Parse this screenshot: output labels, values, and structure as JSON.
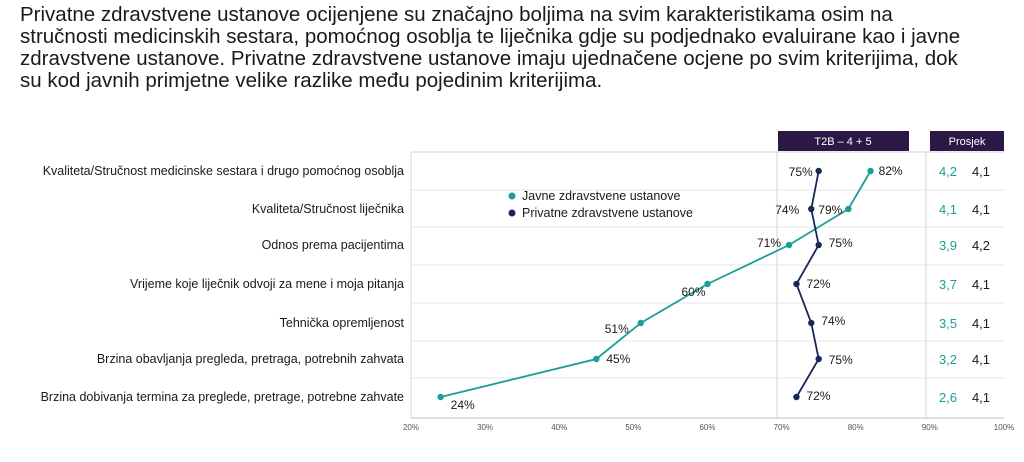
{
  "headline": {
    "lines": [
      "Privatne zdravstvene ustanove ocijenjene su značajno boljima na svim karakteristikama osim na",
      "stručnosti medicinskih sestara, pomoćnog osoblja te liječnika gdje su podjednako evaluirane kao i javne",
      "zdravstvene ustanove. Privatne zdravstvene ustanove imaju ujednačene ocjene po svim kriterijima, dok",
      "su kod javnih primjetne velike razlike među pojedinim kriterijima."
    ]
  },
  "colors": {
    "public": "#1a9e96",
    "private": "#1a2656",
    "header_bg": "#2b1846",
    "grid": "#d4d4d4"
  },
  "chart_data": {
    "type": "line",
    "orientation": "horizontal",
    "categories": [
      "Kvaliteta/Stručnost medicinske sestara i drugo pomoćnog osoblja",
      "Kvaliteta/Stručnost liječnika",
      "Odnos prema pacijentima",
      "Vrijeme koje liječnik odvoji za mene i moja pitanja",
      "Tehnička opremljenost",
      "Brzina obavljanja pregleda, pretraga, potrebnih zahvata",
      "Brzina dobivanja termina za preglede, pretrage, potrebne zahvate"
    ],
    "series": [
      {
        "name": "Javne zdravstvene ustanove",
        "values": [
          82,
          79,
          71,
          60,
          51,
          45,
          24
        ],
        "labels": [
          "82%",
          "79%",
          "71%",
          "60%",
          "51%",
          "45%",
          "24%"
        ]
      },
      {
        "name": "Privatne zdravstvene ustanove",
        "values": [
          75,
          74,
          75,
          72,
          74,
          75,
          72
        ],
        "labels": [
          "75%",
          "74%",
          "75%",
          "72%",
          "74%",
          "75%",
          "72%"
        ]
      }
    ],
    "xlim": [
      20,
      100
    ],
    "xticks": [
      "20%",
      "30%",
      "40%",
      "50%",
      "60%",
      "70%",
      "80%",
      "90%",
      "100%"
    ],
    "grid": true,
    "legend_position": "center",
    "t2b_header": "T2B – 4 + 5",
    "avg_header": "Prosjek",
    "averages": [
      {
        "public": "4,2",
        "private": "4,1"
      },
      {
        "public": "4,1",
        "private": "4,1"
      },
      {
        "public": "3,9",
        "private": "4,2"
      },
      {
        "public": "3,7",
        "private": "4,1"
      },
      {
        "public": "3,5",
        "private": "4,1"
      },
      {
        "public": "3,2",
        "private": "4,1"
      },
      {
        "public": "2,6",
        "private": "4,1"
      }
    ]
  }
}
